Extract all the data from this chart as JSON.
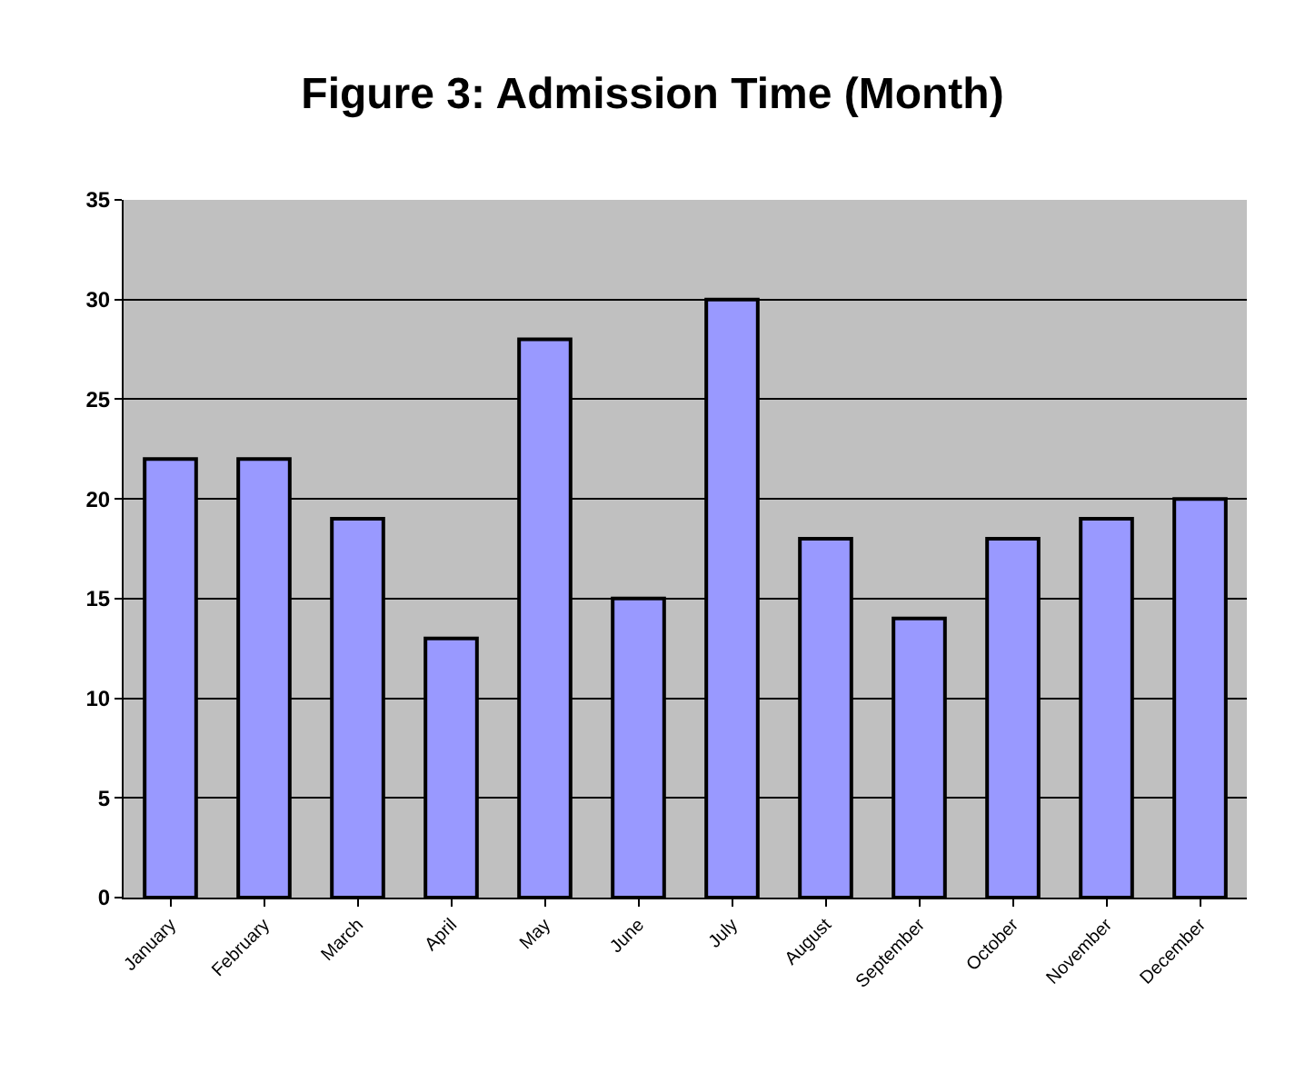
{
  "chart_data": {
    "type": "bar",
    "title": "Figure 3: Admission Time (Month)",
    "categories": [
      "January",
      "February",
      "March",
      "April",
      "May",
      "June",
      "July",
      "August",
      "September",
      "October",
      "November",
      "December"
    ],
    "values": [
      22,
      22,
      19,
      13,
      28,
      15,
      30,
      18,
      14,
      18,
      19,
      20
    ],
    "color": "#9999ff",
    "ylim": [
      0,
      35
    ],
    "yticks": [
      0,
      5,
      10,
      15,
      20,
      25,
      30,
      35
    ],
    "grid": "y"
  }
}
